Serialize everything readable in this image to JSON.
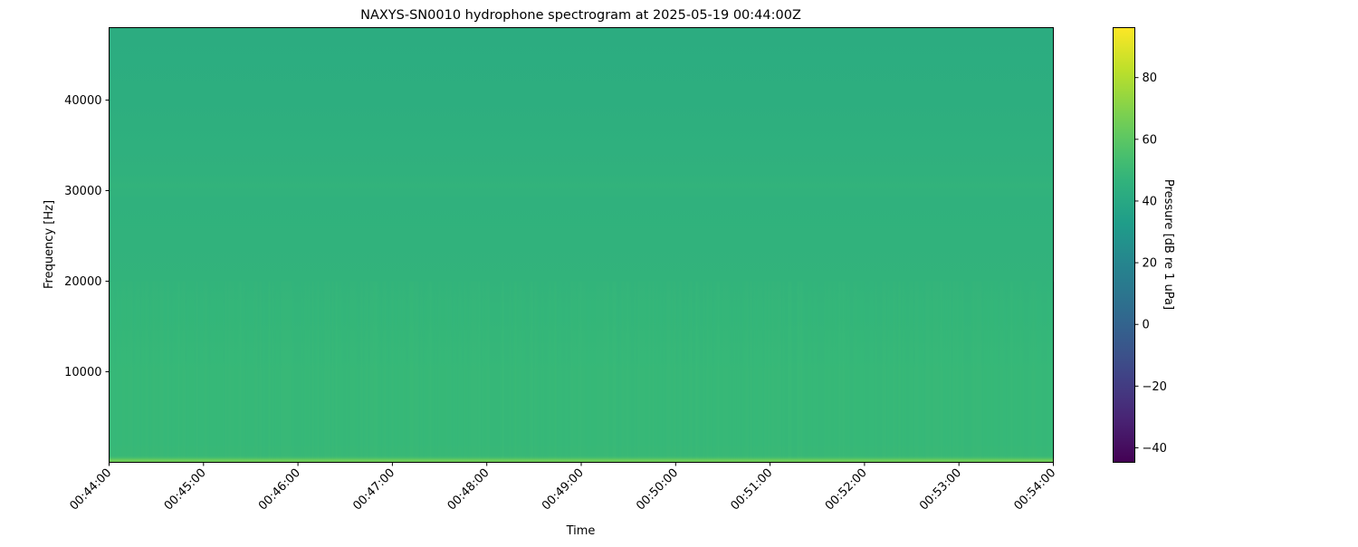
{
  "chart_data": {
    "type": "heatmap",
    "title": "NAXYS-SN0010 hydrophone spectrogram at 2025-05-19 00:44:00Z",
    "xlabel": "Time",
    "ylabel": "Frequency [Hz]",
    "x_tick_labels": [
      "00:44:00",
      "00:45:00",
      "00:46:00",
      "00:47:00",
      "00:48:00",
      "00:49:00",
      "00:50:00",
      "00:51:00",
      "00:52:00",
      "00:53:00",
      "00:54:00"
    ],
    "xlim": [
      "00:44:00",
      "00:54:00"
    ],
    "y_ticks": [
      10000,
      20000,
      30000,
      40000
    ],
    "ylim": [
      0,
      48000
    ],
    "colormap": "viridis",
    "colorbar": {
      "label": "Pressure [dB re 1 uPa]",
      "ticks": [
        -40,
        -20,
        0,
        20,
        40,
        60,
        80
      ],
      "range": [
        -44.7,
        96.2
      ]
    },
    "frequency_profile_db": {
      "frequency_hz": [
        0,
        300,
        700,
        2000,
        5000,
        10000,
        14000,
        20000,
        29000,
        30500,
        32000,
        40000,
        48000
      ],
      "pressure_db": [
        66,
        63,
        51,
        50,
        50,
        50,
        49,
        47,
        45.5,
        47,
        45.5,
        43.5,
        42.5
      ]
    },
    "grid": false
  }
}
